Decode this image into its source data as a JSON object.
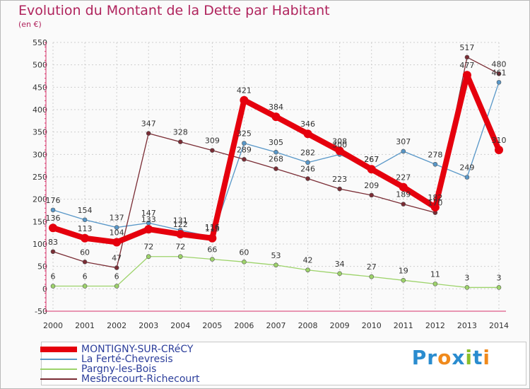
{
  "title": "Evolution du Montant de la Dette par Habitant",
  "subtitle": "(en €)",
  "logo": {
    "text": "Proxiti",
    "letters": [
      {
        "ch": "P",
        "color": "#2a8ccf"
      },
      {
        "ch": "r",
        "color": "#2a8ccf"
      },
      {
        "ch": "o",
        "color": "#f08a1c"
      },
      {
        "ch": "x",
        "color": "#2a8ccf"
      },
      {
        "ch": "i",
        "color": "#8bbf2b"
      },
      {
        "ch": "t",
        "color": "#2a8ccf"
      },
      {
        "ch": "i",
        "color": "#f08a1c"
      }
    ]
  },
  "chart_data": {
    "type": "line",
    "title": "Evolution du Montant de la Dette par Habitant",
    "ylabel": "(en €)",
    "categories": [
      "2000",
      "2001",
      "2002",
      "2003",
      "2004",
      "2005",
      "2006",
      "2007",
      "2008",
      "2009",
      "2010",
      "2011",
      "2012",
      "2013",
      "2014"
    ],
    "ylim": [
      -50,
      550
    ],
    "yticks": [
      -50,
      0,
      50,
      100,
      150,
      200,
      250,
      300,
      350,
      400,
      450,
      500,
      550
    ],
    "series": [
      {
        "name": "MONTIGNY-SUR-CRéCY",
        "color": "#e5000d",
        "emphasis": true,
        "values": [
          136,
          113,
          104,
          133,
          122,
          113,
          421,
          384,
          346,
          308,
          267,
          227,
          182,
          477,
          310
        ]
      },
      {
        "name": "La Ferté-Chevresis",
        "color": "#5897c8",
        "emphasis": false,
        "values": [
          176,
          154,
          137,
          147,
          131,
          116,
          325,
          305,
          282,
          300,
          267,
          307,
          278,
          249,
          461
        ]
      },
      {
        "name": "Pargny-les-Bois",
        "color": "#9dd36a",
        "emphasis": false,
        "values": [
          6,
          6,
          6,
          72,
          72,
          66,
          60,
          53,
          42,
          34,
          27,
          19,
          11,
          3,
          3
        ]
      },
      {
        "name": "Mesbrecourt-Richecourt",
        "color": "#7a2c34",
        "emphasis": false,
        "values": [
          83,
          60,
          47,
          347,
          328,
          309,
          289,
          268,
          246,
          223,
          209,
          189,
          170,
          517,
          480
        ]
      }
    ]
  }
}
